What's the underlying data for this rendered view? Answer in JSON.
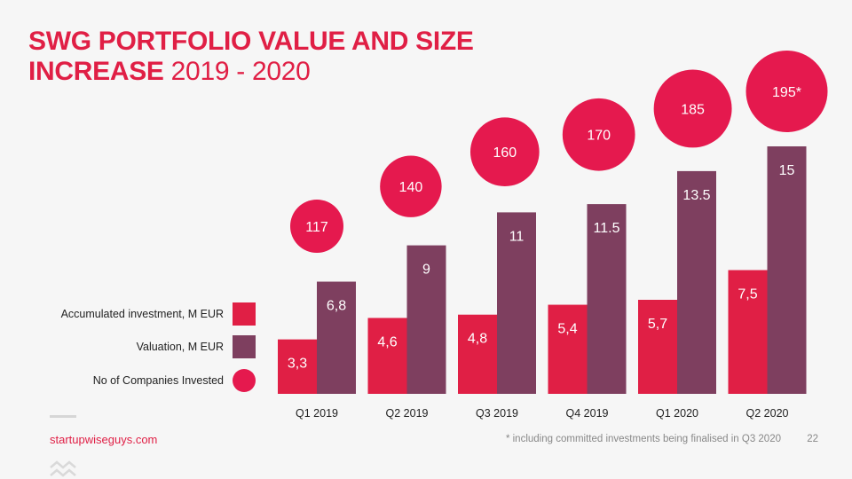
{
  "title": {
    "bold": "SWG PORTFOLIO VALUE AND SIZE",
    "bold2": "INCREASE",
    "light": "2019 - 2020"
  },
  "legend": [
    {
      "label": "Accumulated investment, M EUR"
    },
    {
      "label": "Valuation, M EUR"
    },
    {
      "label": "No of Companies Invested"
    }
  ],
  "colors": {
    "investment": "#e01f45",
    "valuation": "#7e3f5f",
    "companies": "#e5194e"
  },
  "chart_data": {
    "type": "bar",
    "categories": [
      "Q1 2019",
      "Q2 2019",
      "Q3 2019",
      "Q4 2019",
      "Q1 2020",
      "Q2 2020"
    ],
    "series": [
      {
        "name": "Accumulated investment, M EUR",
        "values": [
          3.3,
          4.6,
          4.8,
          5.4,
          5.7,
          7.5
        ],
        "labels": [
          "3,3",
          "4,6",
          "4,8",
          "5,4",
          "5,7",
          "7,5"
        ]
      },
      {
        "name": "Valuation, M EUR",
        "values": [
          6.8,
          9,
          11,
          11.5,
          13.5,
          15
        ],
        "labels": [
          "6,8",
          "9",
          "11",
          "11.5",
          "13.5",
          "15"
        ]
      },
      {
        "name": "No of Companies Invested",
        "values": [
          117,
          140,
          160,
          170,
          185,
          195
        ],
        "labels": [
          "117",
          "140",
          "160",
          "170",
          "185",
          "195*"
        ]
      }
    ],
    "ylim": [
      0,
      15
    ]
  },
  "footer": {
    "website": "startupwiseguys.com",
    "footnote": "* including committed investments being finalised in Q3 2020",
    "page": "22"
  }
}
